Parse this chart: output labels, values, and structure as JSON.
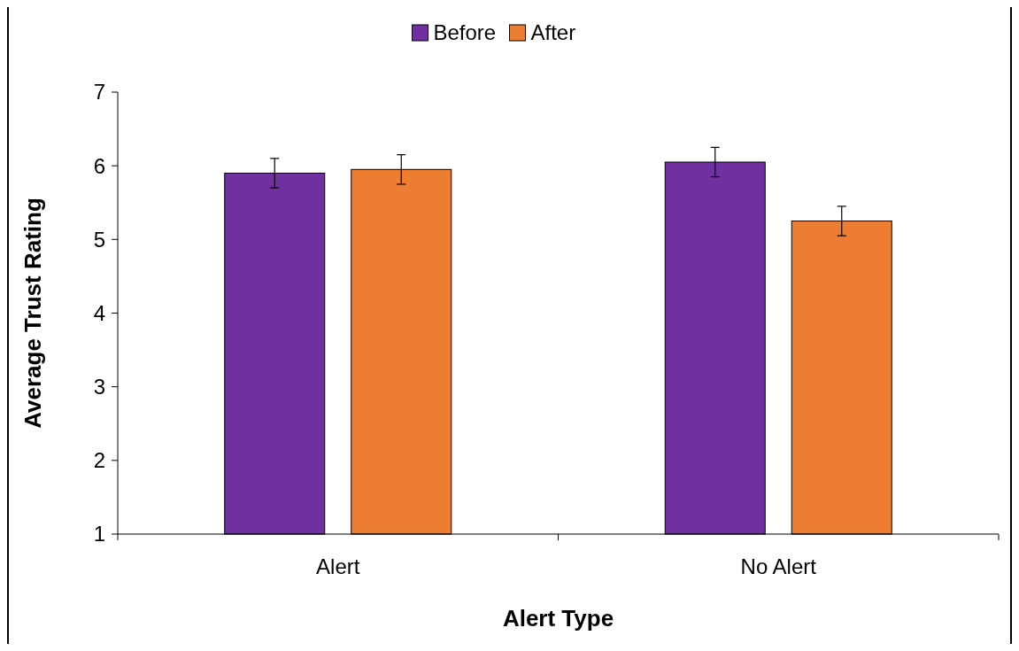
{
  "chart_data": {
    "type": "bar",
    "xlabel": "Alert Type",
    "ylabel": "Average Trust Rating",
    "categories": [
      "Alert",
      "No Alert"
    ],
    "series": [
      {
        "name": "Before",
        "color": "#7030a0",
        "values": [
          5.9,
          6.05
        ],
        "errors": [
          0.2,
          0.2
        ]
      },
      {
        "name": "After",
        "color": "#ed7d31",
        "values": [
          5.95,
          5.25
        ],
        "errors": [
          0.2,
          0.2
        ]
      }
    ],
    "ylim": [
      1,
      7
    ],
    "yticks": [
      1,
      2,
      3,
      4,
      5,
      6,
      7
    ],
    "legend": "top",
    "grid": false
  }
}
